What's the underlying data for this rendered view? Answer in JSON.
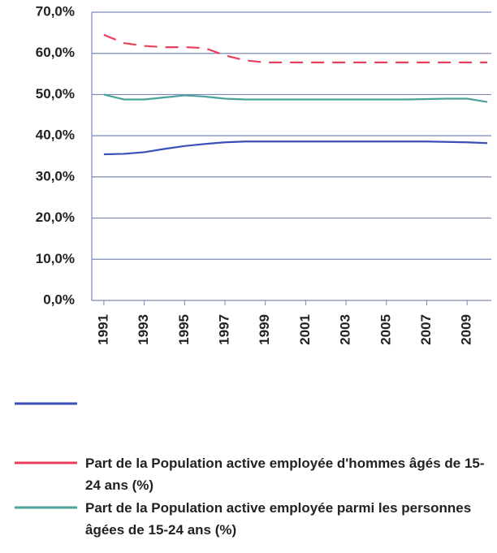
{
  "chart_data": {
    "type": "line",
    "x": [
      1991,
      1992,
      1993,
      1994,
      1995,
      1996,
      1997,
      1998,
      1999,
      2000,
      2001,
      2002,
      2003,
      2004,
      2005,
      2006,
      2007,
      2008,
      2009,
      2010
    ],
    "xlim": [
      1990.4,
      2010.2
    ],
    "xticks": [
      1991,
      1993,
      1995,
      1997,
      1999,
      2001,
      2003,
      2005,
      2007,
      2009
    ],
    "ylim": [
      0,
      70
    ],
    "yticks": [
      {
        "value": 0,
        "label": "0,0%"
      },
      {
        "value": 10,
        "label": "10,0%"
      },
      {
        "value": 20,
        "label": "20,0%"
      },
      {
        "value": 30,
        "label": "30,0%"
      },
      {
        "value": 40,
        "label": "40,0%"
      },
      {
        "value": 50,
        "label": "50,0%"
      },
      {
        "value": 60,
        "label": "60,0%"
      },
      {
        "value": 70,
        "label": "70,0%"
      }
    ],
    "grid": true,
    "legend": "bottom",
    "series": [
      {
        "color": "#3a4fb8",
        "style": "solid",
        "values": [
          35.5,
          35.6,
          36,
          36.8,
          37.5,
          38,
          38.4,
          38.6,
          38.6,
          38.6,
          38.6,
          38.6,
          38.6,
          38.6,
          38.6,
          38.6,
          38.6,
          38.5,
          38.4,
          38.2
        ]
      },
      {
        "name": "Part de la Population active employée d'hommes âgés de 15-24 ans (%)",
        "color": "#e8405a",
        "style": "dashed",
        "values": [
          64.5,
          62.5,
          61.8,
          61.5,
          61.5,
          61.3,
          59.5,
          58.3,
          57.8,
          57.8,
          57.8,
          57.8,
          57.8,
          57.8,
          57.8,
          57.8,
          57.8,
          57.8,
          57.8,
          57.8
        ]
      },
      {
        "name": "Part de la Population active employée parmi les personnes âgées de 15-24 ans (%)",
        "color": "#4aa39a",
        "style": "solid",
        "values": [
          50,
          48.8,
          48.8,
          49.3,
          49.8,
          49.5,
          49,
          48.8,
          48.8,
          48.8,
          48.8,
          48.8,
          48.8,
          48.8,
          48.8,
          48.8,
          48.9,
          49,
          49,
          48.2
        ]
      }
    ]
  }
}
